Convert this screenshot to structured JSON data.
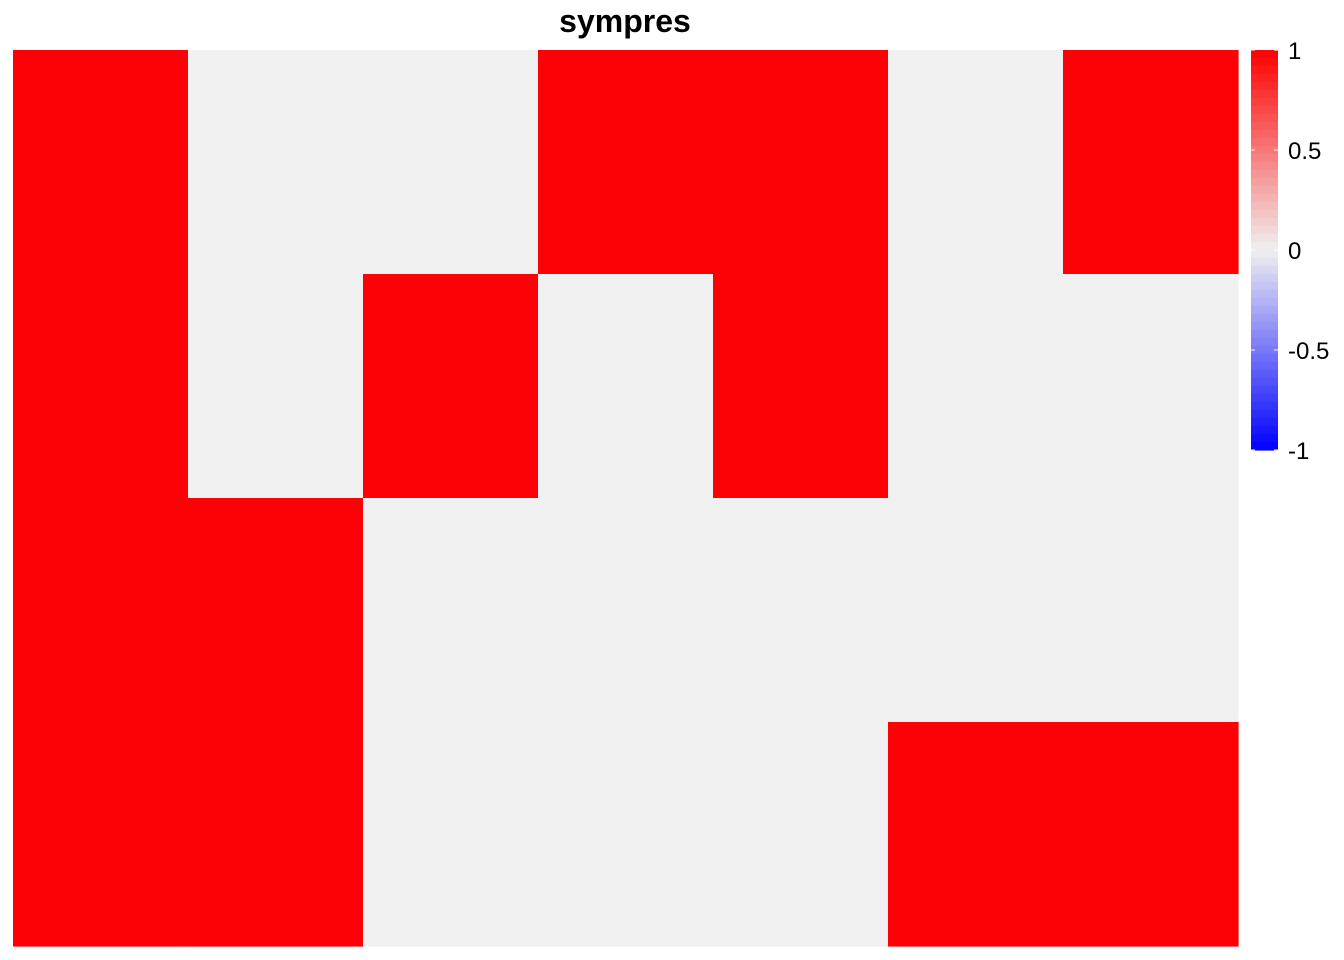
{
  "chart_data": {
    "type": "heatmap",
    "title": "sympres",
    "rows": 4,
    "cols": 7,
    "values": [
      [
        1,
        0,
        0,
        1,
        1,
        0,
        1
      ],
      [
        1,
        0,
        1,
        0,
        1,
        0,
        0
      ],
      [
        1,
        1,
        0,
        0,
        0,
        0,
        0
      ],
      [
        1,
        1,
        0,
        0,
        0,
        1,
        1
      ]
    ],
    "color_scale": {
      "min": -1,
      "max": 1,
      "low_color": "#0000ff",
      "mid_color": "#f0f0f0",
      "high_color": "#ff0000"
    },
    "legend": {
      "position": "right",
      "ticks": [
        1,
        0.5,
        0,
        -0.5,
        -1
      ],
      "tick_labels": [
        "1",
        "0.5",
        "0",
        "-0.5",
        "-1"
      ]
    },
    "grid": false,
    "xlabel": "",
    "ylabel": ""
  }
}
